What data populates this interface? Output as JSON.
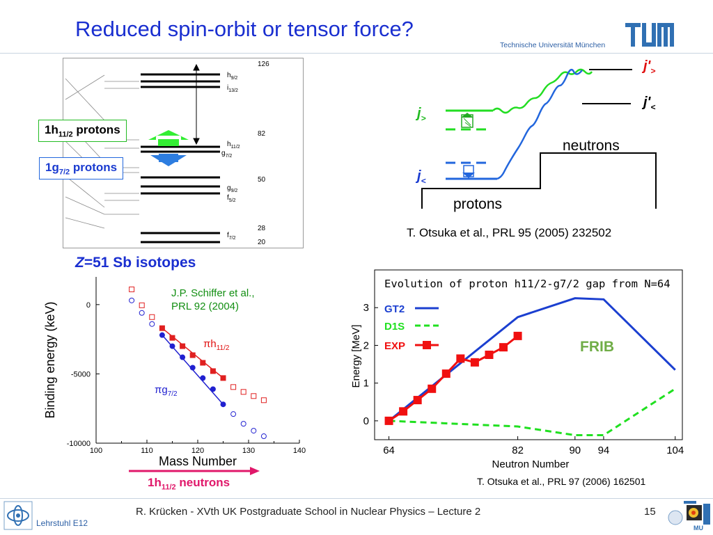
{
  "slide": {
    "title": "Reduced spin-orbit or tensor force?",
    "university": "Technische Universität München",
    "logo_text": "TUM",
    "footer": "R. Krücken   -   XVth UK Postgraduate School in Nuclear Physics – Lecture 2",
    "page_number": "15",
    "institute": "Lehrstuhl E12",
    "mu_logo": "MU"
  },
  "shell_diagram": {
    "magic_numbers": [
      "126",
      "82",
      "50",
      "28",
      "20"
    ],
    "levels": [
      {
        "main": "h",
        "sub": "9/2"
      },
      {
        "main": "i",
        "sub": "13/2"
      },
      {
        "main": "h",
        "sub": "11/2"
      },
      {
        "main": "g",
        "sub": "7/2"
      },
      {
        "main": "g",
        "sub": "9/2"
      },
      {
        "main": "f",
        "sub": "5/2"
      },
      {
        "main": "f",
        "sub": "7/2"
      }
    ],
    "box_h11": {
      "main": "1h",
      "sub": "11/2",
      "rest": " protons"
    },
    "box_g7": {
      "main": "1g",
      "sub": "7/2",
      "rest": " protons"
    }
  },
  "otsuka_schematic": {
    "j_prime_gt": "j'",
    "j_prime_gt_sub": ">",
    "j_prime_lt": "j'",
    "j_prime_lt_sub": "<",
    "j_gt": "j",
    "j_gt_sub": ">",
    "j_lt": "j",
    "j_lt_sub": "<",
    "neutrons": "neutrons",
    "protons": "protons",
    "reference": "T. Otsuka et al., PRL 95 (2005) 232502"
  },
  "sb_chart": {
    "heading_italic": "Z",
    "heading_rest": "=51 Sb isotopes",
    "reference_line1": "J.P. Schiffer et al.,",
    "reference_line2": "PRL 92 (2004)",
    "label_h": {
      "main": "πh",
      "sub": "11/2"
    },
    "label_g": {
      "main": "πg",
      "sub": "7/2"
    },
    "arrow_label": {
      "main": "1h",
      "sub": "11/2",
      "rest": " neutrons"
    }
  },
  "gap_chart": {
    "legend": [
      "GT2",
      "D1S",
      "EXP"
    ],
    "frib": "FRIB",
    "reference": "T. Otsuka et al., PRL 97 (2006) 162501"
  },
  "chart_data": [
    {
      "type": "scatter",
      "title": "",
      "xlabel": "Mass Number",
      "ylabel": "Binding energy (keV)",
      "xlim": [
        100,
        140
      ],
      "ylim": [
        -10000,
        2000
      ],
      "xticks": [
        "100",
        "110",
        "120",
        "130",
        "140"
      ],
      "yticks": [
        "0",
        "-5000",
        "-10000"
      ],
      "series": [
        {
          "name": "πh11/2",
          "color": "#e02020",
          "marker": "square",
          "points": [
            [
              107,
              1100
            ],
            [
              109,
              -50
            ],
            [
              111,
              -900
            ],
            [
              113,
              -1700
            ],
            [
              115,
              -2400
            ],
            [
              117,
              -3000
            ],
            [
              119,
              -3650
            ],
            [
              121,
              -4200
            ],
            [
              123,
              -4800
            ],
            [
              125,
              -5300
            ],
            [
              127,
              -5950
            ],
            [
              129,
              -6300
            ],
            [
              131,
              -6600
            ],
            [
              133,
              -6900
            ]
          ]
        },
        {
          "name": "πg7/2",
          "color": "#2020d0",
          "marker": "circle",
          "points": [
            [
              107,
              300
            ],
            [
              109,
              -600
            ],
            [
              111,
              -1400
            ],
            [
              113,
              -2200
            ],
            [
              115,
              -3000
            ],
            [
              117,
              -3800
            ],
            [
              119,
              -4550
            ],
            [
              121,
              -5300
            ],
            [
              123,
              -6100
            ],
            [
              125,
              -7200
            ],
            [
              127,
              -7900
            ],
            [
              129,
              -8600
            ],
            [
              131,
              -9100
            ],
            [
              133,
              -9500
            ]
          ]
        }
      ],
      "fits": [
        {
          "series": "πh11/2",
          "x": [
            113,
            125
          ],
          "y": [
            -1700,
            -5300
          ]
        },
        {
          "series": "πg7/2",
          "x": [
            113,
            125
          ],
          "y": [
            -2200,
            -7200
          ]
        }
      ]
    },
    {
      "type": "line",
      "title": "Evolution of proton h11/2-g7/2 gap from N=64",
      "xlabel": "Neutron Number",
      "ylabel": "Energy [MeV]",
      "xlim": [
        64,
        104
      ],
      "ylim": [
        -0.5,
        4
      ],
      "xticks": [
        "64",
        "82",
        "90",
        "94",
        "104"
      ],
      "yticks": [
        "0",
        "1",
        "2",
        "3"
      ],
      "series": [
        {
          "name": "GT2",
          "color": "#1b3fd0",
          "style": "solid",
          "x": [
            64,
            82,
            90,
            94,
            104
          ],
          "y": [
            0,
            2.75,
            3.25,
            3.22,
            1.35
          ]
        },
        {
          "name": "D1S",
          "color": "#20e020",
          "style": "dashed",
          "x": [
            64,
            82,
            90,
            94,
            104
          ],
          "y": [
            0,
            -0.15,
            -0.38,
            -0.38,
            0.85
          ]
        },
        {
          "name": "EXP",
          "color": "#f01010",
          "style": "solid-markers",
          "x": [
            64,
            66,
            68,
            70,
            72,
            74,
            76,
            78,
            80,
            82
          ],
          "y": [
            0,
            0.25,
            0.55,
            0.85,
            1.25,
            1.65,
            1.55,
            1.75,
            1.95,
            2.25
          ]
        }
      ]
    }
  ]
}
